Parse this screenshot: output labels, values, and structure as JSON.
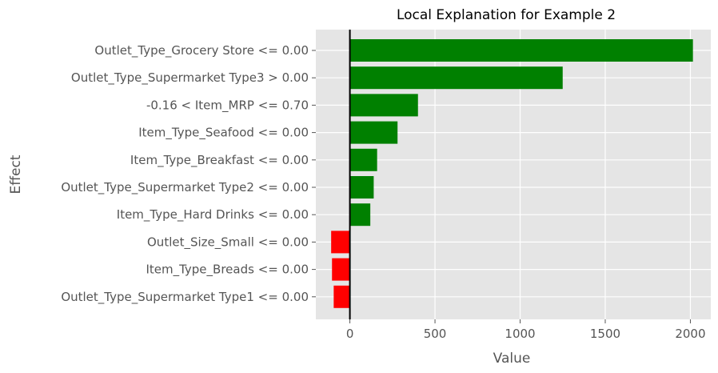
{
  "chart_data": {
    "type": "bar",
    "orientation": "horizontal",
    "title": "Local Explanation for Example 2",
    "xlabel": "Value",
    "ylabel": "Effect",
    "categories": [
      "Outlet_Type_Grocery Store <= 0.00",
      "Outlet_Type_Supermarket Type3 > 0.00",
      "-0.16 < Item_MRP <= 0.70",
      "Item_Type_Seafood <= 0.00",
      "Item_Type_Breakfast <= 0.00",
      "Outlet_Type_Supermarket Type2 <= 0.00",
      "Item_Type_Hard Drinks <= 0.00",
      "Outlet_Size_Small <= 0.00",
      "Item_Type_Breads <= 0.00",
      "Outlet_Type_Supermarket Type1 <= 0.00"
    ],
    "values": [
      2015,
      1250,
      400,
      280,
      160,
      140,
      120,
      -110,
      -105,
      -95
    ],
    "xlim": [
      -200,
      2120
    ],
    "xticks": [
      0,
      500,
      1000,
      1500,
      2000
    ],
    "grid": true,
    "zero_line": true,
    "colors": {
      "positive": "#008000",
      "negative": "#ff0000",
      "background": "#e5e5e5",
      "grid": "#ffffff"
    }
  }
}
